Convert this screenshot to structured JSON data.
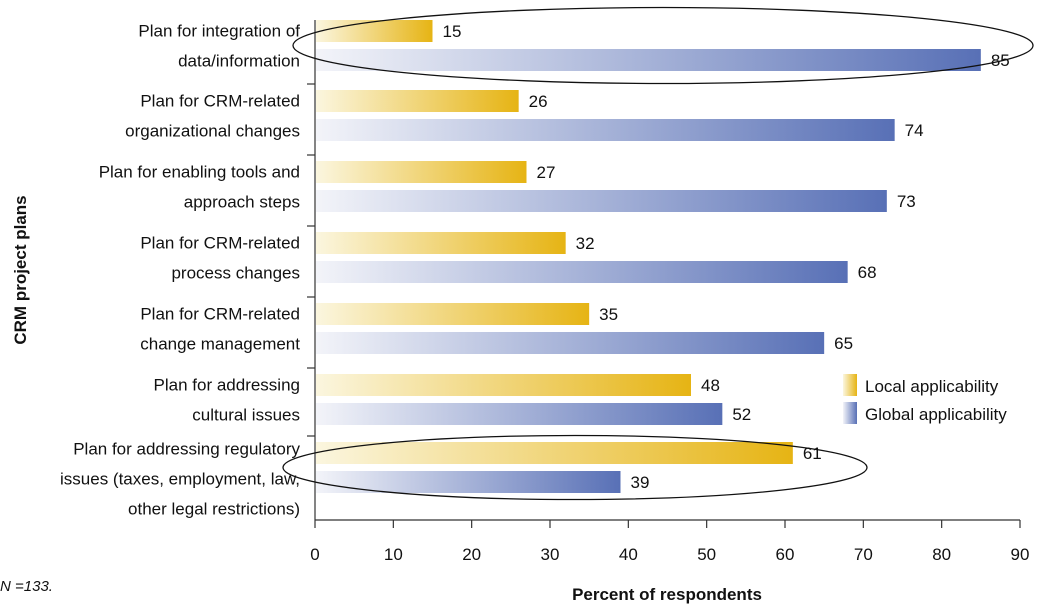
{
  "chart_data": {
    "type": "bar",
    "orientation": "horizontal",
    "categories": [
      [
        "Plan for integration of",
        "data/information"
      ],
      [
        "Plan for CRM-related",
        "organizational changes"
      ],
      [
        "Plan for enabling tools and",
        "approach steps"
      ],
      [
        "Plan for CRM-related",
        "process changes"
      ],
      [
        "Plan for CRM-related",
        "change management"
      ],
      [
        "Plan for addressing",
        "cultural issues"
      ],
      [
        "Plan for addressing regulatory",
        "issues (taxes, employment, law,",
        "other legal restrictions)"
      ]
    ],
    "series": [
      {
        "name": "Local applicability",
        "values": [
          15,
          26,
          27,
          32,
          35,
          48,
          61
        ],
        "color": "#e8b820"
      },
      {
        "name": "Global applicability",
        "values": [
          85,
          74,
          73,
          68,
          65,
          52,
          39
        ],
        "color": "#5a74b8"
      }
    ],
    "xlabel": "Percent of respondents",
    "ylabel": "CRM project plans",
    "xlim": [
      0,
      90
    ],
    "xticks": [
      "0",
      "10",
      "20",
      "30",
      "40",
      "50",
      "60",
      "70",
      "80",
      "90"
    ],
    "highlighted_categories": [
      0,
      6
    ],
    "legend_position": "right",
    "grid": false
  },
  "note": "N =133."
}
